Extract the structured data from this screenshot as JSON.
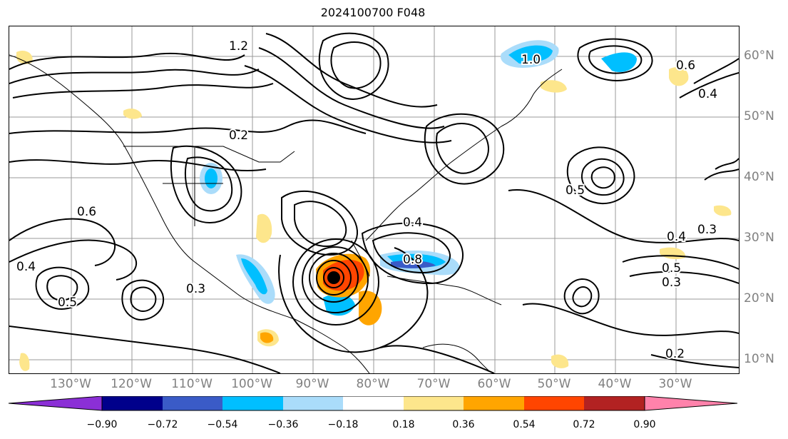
{
  "title": "2024100700 F048",
  "lon_labels": [
    "130°W",
    "120°W",
    "110°W",
    "100°W",
    "90°W",
    "80°W",
    "70°W",
    "60°W",
    "50°W",
    "40°W",
    "30°W"
  ],
  "lat_labels": [
    "60°N",
    "50°N",
    "40°N",
    "30°N",
    "20°N",
    "10°N"
  ],
  "contour_labels": [
    "0.2",
    "0.3",
    "0.4",
    "0.5",
    "0.6",
    "0.8",
    "1.0",
    "1.2"
  ],
  "colorbar": {
    "ticks": [
      "−0.90",
      "−0.72",
      "−0.54",
      "−0.36",
      "−0.18",
      "0.18",
      "0.36",
      "0.54",
      "0.72",
      "0.90"
    ],
    "colors": [
      "#8b2fd6",
      "#00008b",
      "#3a5bc7",
      "#00bfff",
      "#aadcfa",
      "#ffffff",
      "#fde68c",
      "#ffa500",
      "#ff4500",
      "#b22222",
      "#ff82ab"
    ]
  },
  "colors": {
    "negative_shade": "#00bfff",
    "light_negative_shade": "#aadcfa",
    "positive_shade": "#fde68c",
    "strong_positive_shade": "#ffa500",
    "storm_center": "#000000"
  }
}
